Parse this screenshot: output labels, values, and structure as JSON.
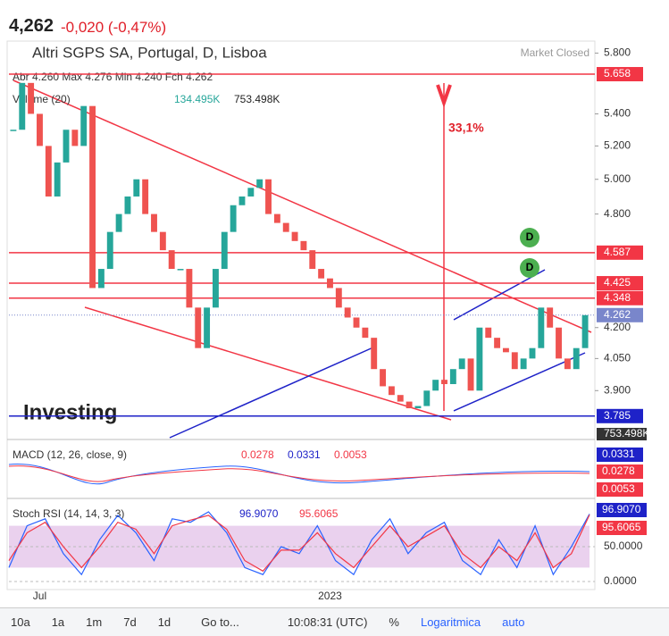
{
  "header": {
    "price": "4,262",
    "change": "-0,020 (-0,47%)"
  },
  "chart_data": [
    {
      "type": "candle",
      "title": "Altri SGPS SA, Portugal, D, Lisboa",
      "status": "Market Closed",
      "ohlc": "Abr 4.260 Max 4.276 Min 4.240 Fch 4.262",
      "volume_label": "Volume (20)",
      "volume_values": [
        "134.495K",
        "753.498K"
      ],
      "annotation": "33,1%",
      "markers": [
        "D",
        "D"
      ],
      "watermark": "Investing",
      "categories": [
        null,
        null,
        null,
        "Jul",
        null,
        null,
        null,
        null,
        null,
        null,
        null,
        null,
        null,
        null,
        null,
        null,
        null,
        null,
        null,
        null,
        null,
        null,
        null,
        null,
        null,
        null,
        null,
        null,
        null,
        null,
        null,
        null,
        null,
        null,
        null,
        null,
        "2023",
        null,
        null,
        null,
        null,
        null,
        null,
        null,
        null,
        null,
        null,
        null,
        null,
        null,
        null,
        null,
        null,
        null,
        null,
        null,
        null,
        null,
        null,
        null,
        null,
        null,
        null,
        null,
        null,
        null
      ],
      "values": [
        5.3,
        5.6,
        5.4,
        5.2,
        4.9,
        5.1,
        5.3,
        5.2,
        5.45,
        4.4,
        4.5,
        4.7,
        4.8,
        4.9,
        5.0,
        4.8,
        4.7,
        4.6,
        4.5,
        4.5,
        4.3,
        4.1,
        4.3,
        4.5,
        4.7,
        4.85,
        4.9,
        4.95,
        5.0,
        4.8,
        4.75,
        4.7,
        4.65,
        4.6,
        4.5,
        4.45,
        4.4,
        4.3,
        4.25,
        4.2,
        4.15,
        4.0,
        3.92,
        3.88,
        3.85,
        3.82,
        3.83,
        3.9,
        3.95,
        3.93,
        4.0,
        4.05,
        3.9,
        4.2,
        4.15,
        4.1,
        4.08,
        4.0,
        4.05,
        4.1,
        4.3,
        4.2,
        4.05,
        4.0,
        4.1,
        4.262
      ],
      "up_color": "#26a69a",
      "down_color": "#ef5350",
      "log_scale": true,
      "ylim": [
        3.69,
        5.87
      ],
      "yticks": [
        {
          "value": 5.8,
          "label": "5.800"
        },
        {
          "value": 5.4,
          "label": "5.400"
        },
        {
          "value": 5.2,
          "label": "5.200"
        },
        {
          "value": 5.0,
          "label": "5.000"
        },
        {
          "value": 4.8,
          "label": "4.800"
        },
        {
          "value": 4.2,
          "label": "4.200"
        },
        {
          "value": 4.05,
          "label": "4.050"
        },
        {
          "value": 3.9,
          "label": "3.900"
        }
      ],
      "levels": [
        {
          "value": 5.658,
          "label": "5.658",
          "color": "#f23645"
        },
        {
          "value": 4.587,
          "label": "4.587",
          "color": "#f23645"
        },
        {
          "value": 4.425,
          "label": "4.425",
          "color": "#f23645"
        },
        {
          "value": 4.348,
          "label": "4.348",
          "color": "#f23645"
        },
        {
          "value": 3.785,
          "label": "3.785",
          "color": "#1e22c8"
        }
      ],
      "last": {
        "value": 4.262,
        "label": "4.262"
      },
      "volume_tag": "753.498K"
    },
    {
      "type": "macd",
      "title": "MACD (12, 26, close, 9)",
      "values": [
        "0.0278",
        "0.0331",
        "0.0053"
      ],
      "axis_labels": [
        "0.0331",
        "0.0278",
        "0.0053"
      ]
    },
    {
      "type": "line",
      "title": "Stoch RSI (14, 14, 3, 3)",
      "values_labels": [
        "96.9070",
        "95.6065"
      ],
      "series": [
        {
          "name": "K",
          "color": "#2962ff",
          "values": [
            20,
            80,
            90,
            40,
            10,
            60,
            95,
            70,
            30,
            90,
            85,
            100,
            70,
            20,
            10,
            50,
            40,
            80,
            30,
            10,
            60,
            90,
            40,
            70,
            85,
            30,
            10,
            60,
            20,
            80,
            10,
            50,
            96.907
          ]
        },
        {
          "name": "D",
          "color": "#f23645",
          "values": [
            30,
            70,
            85,
            50,
            20,
            50,
            85,
            75,
            40,
            80,
            88,
            95,
            75,
            30,
            15,
            45,
            45,
            70,
            40,
            20,
            50,
            80,
            50,
            65,
            80,
            40,
            20,
            50,
            30,
            70,
            20,
            40,
            95.6065
          ]
        }
      ],
      "ylim": [
        -11.5,
        112.8
      ],
      "yticks": [
        {
          "value": 50,
          "label": "50.0000"
        },
        {
          "value": 0,
          "label": "0.0000"
        }
      ],
      "band": [
        20,
        80
      ]
    }
  ],
  "toolbar": [
    "10a",
    "1a",
    "1m",
    "7d",
    "1d",
    "Go to...",
    "10:08:31 (UTC)",
    "%",
    "Logaritmica",
    "auto"
  ]
}
